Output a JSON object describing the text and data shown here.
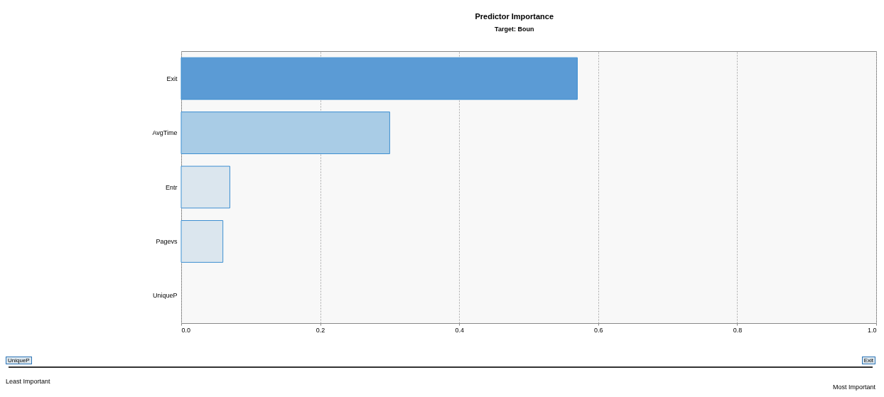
{
  "chart_data": {
    "type": "bar",
    "orientation": "horizontal",
    "title": "Predictor Importance",
    "subtitle": "Target: Boun",
    "categories": [
      "Exit",
      "AvgTime",
      "Entr",
      "Pagevs",
      "UniqueP"
    ],
    "values": [
      0.57,
      0.3,
      0.07,
      0.06,
      0
    ],
    "colors": [
      "#5b9bd5",
      "#a9cce6",
      "#dbe6ee",
      "#dbe6ee",
      "#dbe6ee"
    ],
    "xlim": [
      0,
      1
    ],
    "xticks": [
      {
        "value": 0,
        "label": "0.0"
      },
      {
        "value": 0.2,
        "label": "0.2"
      },
      {
        "value": 0.4,
        "label": "0.4"
      },
      {
        "value": 0.6,
        "label": "0.6"
      },
      {
        "value": 0.8,
        "label": "0.8"
      },
      {
        "value": 1,
        "label": "1.0"
      }
    ],
    "grid": "x",
    "annotations": [
      "UniqueP",
      "Exit",
      "Least Important",
      "Most Important"
    ]
  }
}
